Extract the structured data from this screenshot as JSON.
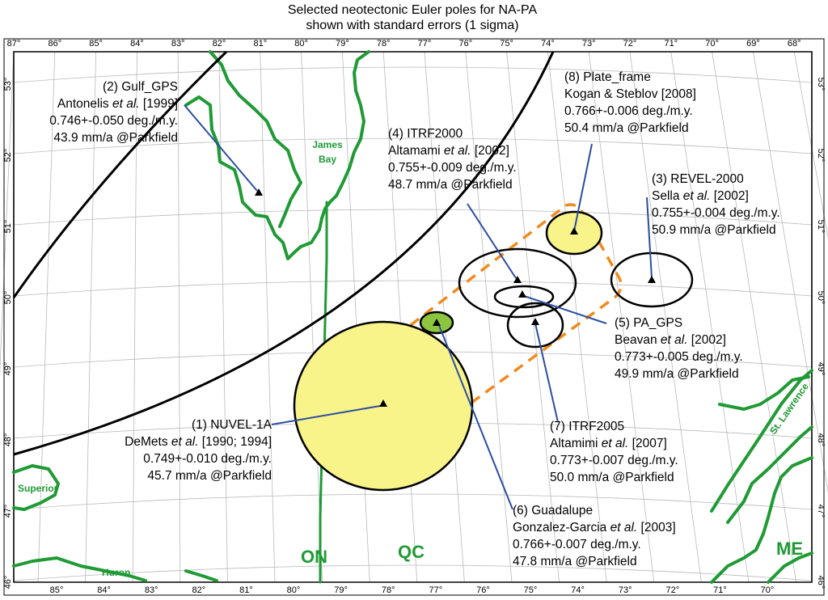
{
  "title": {
    "line1": "Selected neotectonic Euler poles for NA-PA",
    "line2": "shown with standard errors (1 sigma)"
  },
  "top_ticks": [
    "87°",
    "86°",
    "85°",
    "84°",
    "83°",
    "82°",
    "81°",
    "80°",
    "79°",
    "78°",
    "77°",
    "76°",
    "75°",
    "74°",
    "73°",
    "72°",
    "71°",
    "70°",
    "69°",
    "68°"
  ],
  "bottom_ticks": [
    "85°",
    "84°",
    "83°",
    "82°",
    "81°",
    "80°",
    "79°",
    "78°",
    "77°",
    "76°",
    "75°",
    "74°",
    "73°",
    "72°",
    "71°",
    "70°"
  ],
  "left_ticks": [
    "53°",
    "52°",
    "51°",
    "50°",
    "49°",
    "48°",
    "47°",
    "46°"
  ],
  "right_ticks": [
    "53°",
    "52°",
    "51°",
    "50°",
    "49°",
    "48°",
    "47°",
    "46°"
  ],
  "poles": [
    {
      "id": "1",
      "lines": [
        "(1) NUVEL-1A",
        "DeMets et al. [1990; 1994]",
        "0.749+-0.010 deg./m.y.",
        "45.7 mm/a @Parkfield"
      ],
      "italic": "et al.",
      "fill": "#f8f48a"
    },
    {
      "id": "2",
      "lines": [
        "(2) Gulf_GPS",
        "Antonelis et al. [1999]",
        "0.746+-0.050 deg./m.y.",
        "43.9 mm/a @Parkfield"
      ],
      "italic": "et al.",
      "fill": "none"
    },
    {
      "id": "3",
      "lines": [
        "(3) REVEL-2000",
        "Sella et al. [2002]",
        "0.755+-0.004 deg./m.y.",
        "50.9 mm/a @Parkfield"
      ],
      "italic": "et al.",
      "fill": "none"
    },
    {
      "id": "4",
      "lines": [
        "(4) ITRF2000",
        "Altamami et al. [2002]",
        "0.755+-0.009 deg./m.y.",
        "48.7 mm/a @Parkfield"
      ],
      "italic": "et al.",
      "fill": "none"
    },
    {
      "id": "5",
      "lines": [
        "(5) PA_GPS",
        "Beavan et al. [2002]",
        "0.773+-0.005 deg./m.y.",
        "49.9 mm/a @Parkfield"
      ],
      "italic": "et al.",
      "fill": "none"
    },
    {
      "id": "6",
      "lines": [
        "(6) Guadalupe",
        "Gonzalez-Garcia et al. [2003]",
        "0.766+-0.007 deg./m.y.",
        "47.8 mm/a @Parkfield"
      ],
      "italic": "et al.",
      "fill": "#8cc63f"
    },
    {
      "id": "7",
      "lines": [
        "(7) ITRF2005",
        "Altamimi et al. [2007]",
        "0.773+-0.007 deg./m.y.",
        "50.0 mm/a @Parkfield"
      ],
      "italic": "et al.",
      "fill": "none"
    },
    {
      "id": "8",
      "lines": [
        "(8) Plate_frame",
        "Kogan & Steblov [2008]",
        "0.766+-0.006 deg./m.y.",
        "50.4 mm/a @Parkfield"
      ],
      "italic": "",
      "fill": "#f8f48a"
    }
  ],
  "geo_labels": {
    "james_bay_1": "James",
    "james_bay_2": "Bay",
    "st_lawrence": "St. Lawrence",
    "superior": "Superior",
    "huron": "Huron",
    "on": "ON",
    "qc": "QC",
    "me": "ME"
  },
  "colors": {
    "coast": "#1f9a35",
    "leader": "#2b4e9e",
    "dashed_box": "#f08a1c",
    "yellow_fill": "#f8f48a",
    "green_fill": "#8cc63f",
    "graticule": "#b9b9b9"
  }
}
